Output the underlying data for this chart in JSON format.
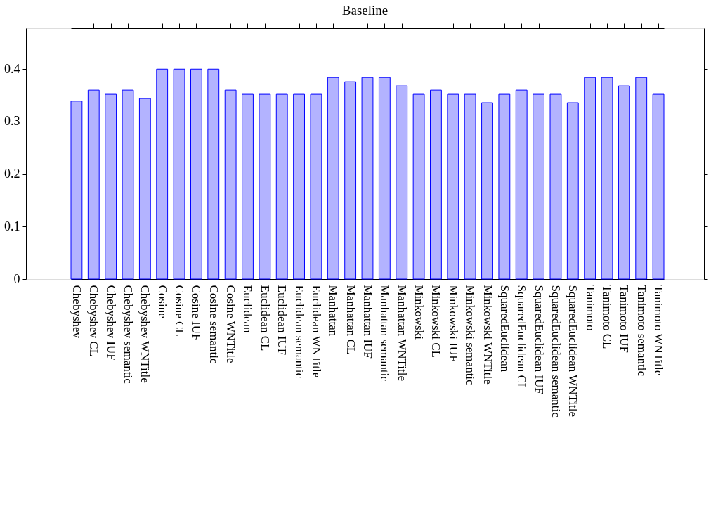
{
  "chart_data": {
    "type": "bar",
    "title": "Baseline",
    "categories": [
      "Chebyshev",
      "Chebyshev CL",
      "Chebyshev IUF",
      "Chebyshev semantic",
      "Chebyshev WNTitle",
      "Cosine",
      "Cosine CL",
      "Cosine IUF",
      "Cosine semantic",
      "Cosine WNTitle",
      "Euclidean",
      "Euclidean CL",
      "Euclidean IUF",
      "Euclidean semantic",
      "Euclidean WNTitle",
      "Manhattan",
      "Manhattan CL",
      "Manhattan IUF",
      "Manhattan semantic",
      "Manhattan WNTitle",
      "Minkowski",
      "Minkowski CL",
      "Minkowski IUF",
      "Minkowski semantic",
      "Minkowski WNTitle",
      "SquaredEuclidean",
      "SquaredEuclidean CL",
      "SquaredEuclidean IUF",
      "SquaredEuclidean semantic",
      "SquaredEuclidean WNTitle",
      "Tanimoto",
      "Tanimoto CL",
      "Tanimoto IUF",
      "Tanimoto semantic",
      "Tanimoto WNTitle"
    ],
    "values": [
      0.339,
      0.36,
      0.352,
      0.36,
      0.344,
      0.4,
      0.4,
      0.4,
      0.4,
      0.36,
      0.352,
      0.352,
      0.352,
      0.352,
      0.352,
      0.384,
      0.376,
      0.384,
      0.384,
      0.368,
      0.352,
      0.36,
      0.352,
      0.352,
      0.336,
      0.352,
      0.36,
      0.352,
      0.352,
      0.336,
      0.384,
      0.384,
      0.368,
      0.384,
      0.352
    ],
    "color": "#b3b3ff",
    "ylim": [
      0,
      0.478
    ],
    "yticks": [
      0,
      0.1,
      0.2,
      0.3,
      0.4
    ],
    "grid": false
  }
}
